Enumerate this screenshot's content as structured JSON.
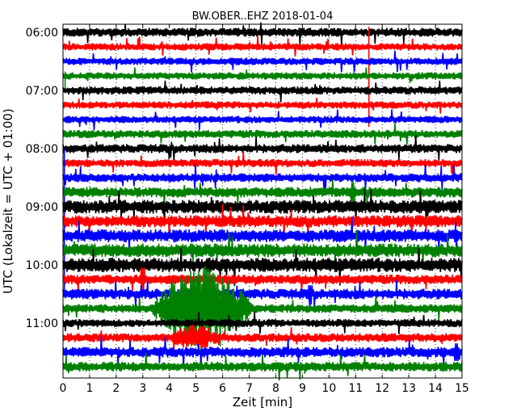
{
  "chart_data": {
    "type": "line",
    "title": "BW.OBER..EHZ 2018-01-04",
    "xlabel": "Zeit  [min]",
    "ylabel": "UTC (Lokalzeit = UTC + 01:00)",
    "xlim": [
      0,
      15
    ],
    "x_ticks": [
      "0",
      "1",
      "2",
      "3",
      "4",
      "5",
      "6",
      "7",
      "8",
      "9",
      "10",
      "11",
      "12",
      "13",
      "14",
      "15"
    ],
    "y_tick_labels": [
      "06:00",
      "07:00",
      "08:00",
      "09:00",
      "10:00",
      "11:00"
    ],
    "y_tick_trace_index": [
      0,
      4,
      8,
      12,
      16,
      20
    ],
    "trace_start": "06:00",
    "trace_interval_min": 15,
    "colors": [
      "#000000",
      "#ff0000",
      "#0000ff",
      "#008000"
    ],
    "grid": "vertical dotted at each minute",
    "traces": [
      {
        "start": "06:00",
        "color": "#000000",
        "amplitude": 0.22
      },
      {
        "start": "06:15",
        "color": "#ff0000",
        "amplitude": 0.18
      },
      {
        "start": "06:30",
        "color": "#0000ff",
        "amplitude": 0.18
      },
      {
        "start": "06:45",
        "color": "#008000",
        "amplitude": 0.18
      },
      {
        "start": "07:00",
        "color": "#000000",
        "amplitude": 0.2
      },
      {
        "start": "07:15",
        "color": "#ff0000",
        "amplitude": 0.18
      },
      {
        "start": "07:30",
        "color": "#0000ff",
        "amplitude": 0.18
      },
      {
        "start": "07:45",
        "color": "#008000",
        "amplitude": 0.2
      },
      {
        "start": "08:00",
        "color": "#000000",
        "amplitude": 0.22
      },
      {
        "start": "08:15",
        "color": "#ff0000",
        "amplitude": 0.2
      },
      {
        "start": "08:30",
        "color": "#0000ff",
        "amplitude": 0.22
      },
      {
        "start": "08:45",
        "color": "#008000",
        "amplitude": 0.26
      },
      {
        "start": "09:00",
        "color": "#000000",
        "amplitude": 0.34
      },
      {
        "start": "09:15",
        "color": "#ff0000",
        "amplitude": 0.3
      },
      {
        "start": "09:30",
        "color": "#0000ff",
        "amplitude": 0.32
      },
      {
        "start": "09:45",
        "color": "#008000",
        "amplitude": 0.34
      },
      {
        "start": "10:00",
        "color": "#000000",
        "amplitude": 0.36
      },
      {
        "start": "10:15",
        "color": "#ff0000",
        "amplitude": 0.24
      },
      {
        "start": "10:30",
        "color": "#0000ff",
        "amplitude": 0.26
      },
      {
        "start": "10:45",
        "color": "#008000",
        "amplitude": 0.22
      },
      {
        "start": "11:00",
        "color": "#000000",
        "amplitude": 0.2
      },
      {
        "start": "11:15",
        "color": "#ff0000",
        "amplitude": 0.22
      },
      {
        "start": "11:30",
        "color": "#0000ff",
        "amplitude": 0.26
      },
      {
        "start": "11:45",
        "color": "#008000",
        "amplitude": 0.24
      }
    ],
    "events": [
      {
        "trace": 1,
        "minute": 11.5,
        "kind": "spike",
        "amplitude": 5.5
      },
      {
        "trace": 19,
        "minute": 3.2,
        "end_minute": 8.5,
        "kind": "burst",
        "amplitude": 3.0
      },
      {
        "trace": 21,
        "minute": 3.8,
        "end_minute": 6.8,
        "kind": "burst",
        "amplitude": 0.9
      },
      {
        "trace": 3,
        "minute": 0.08,
        "kind": "spike",
        "amplitude": 1.2
      },
      {
        "trace": 10,
        "minute": 0.05,
        "end_minute": 0.15,
        "kind": "drift",
        "amplitude": 8.0
      },
      {
        "trace": 11,
        "minute": 10.9,
        "kind": "blip",
        "amplitude": 0.7
      },
      {
        "trace": 12,
        "minute": 12.9,
        "end_minute": 14.9,
        "kind": "burst",
        "amplitude": 0.45
      },
      {
        "trace": 16,
        "minute": 0.0,
        "end_minute": 0.8,
        "kind": "burst",
        "amplitude": 0.45
      },
      {
        "trace": 17,
        "minute": 3.0,
        "kind": "blip",
        "amplitude": 0.8
      },
      {
        "trace": 18,
        "minute": 9.3,
        "kind": "blip",
        "amplitude": 0.6
      },
      {
        "trace": 22,
        "minute": 14.8,
        "kind": "blip",
        "amplitude": 0.6
      }
    ]
  }
}
